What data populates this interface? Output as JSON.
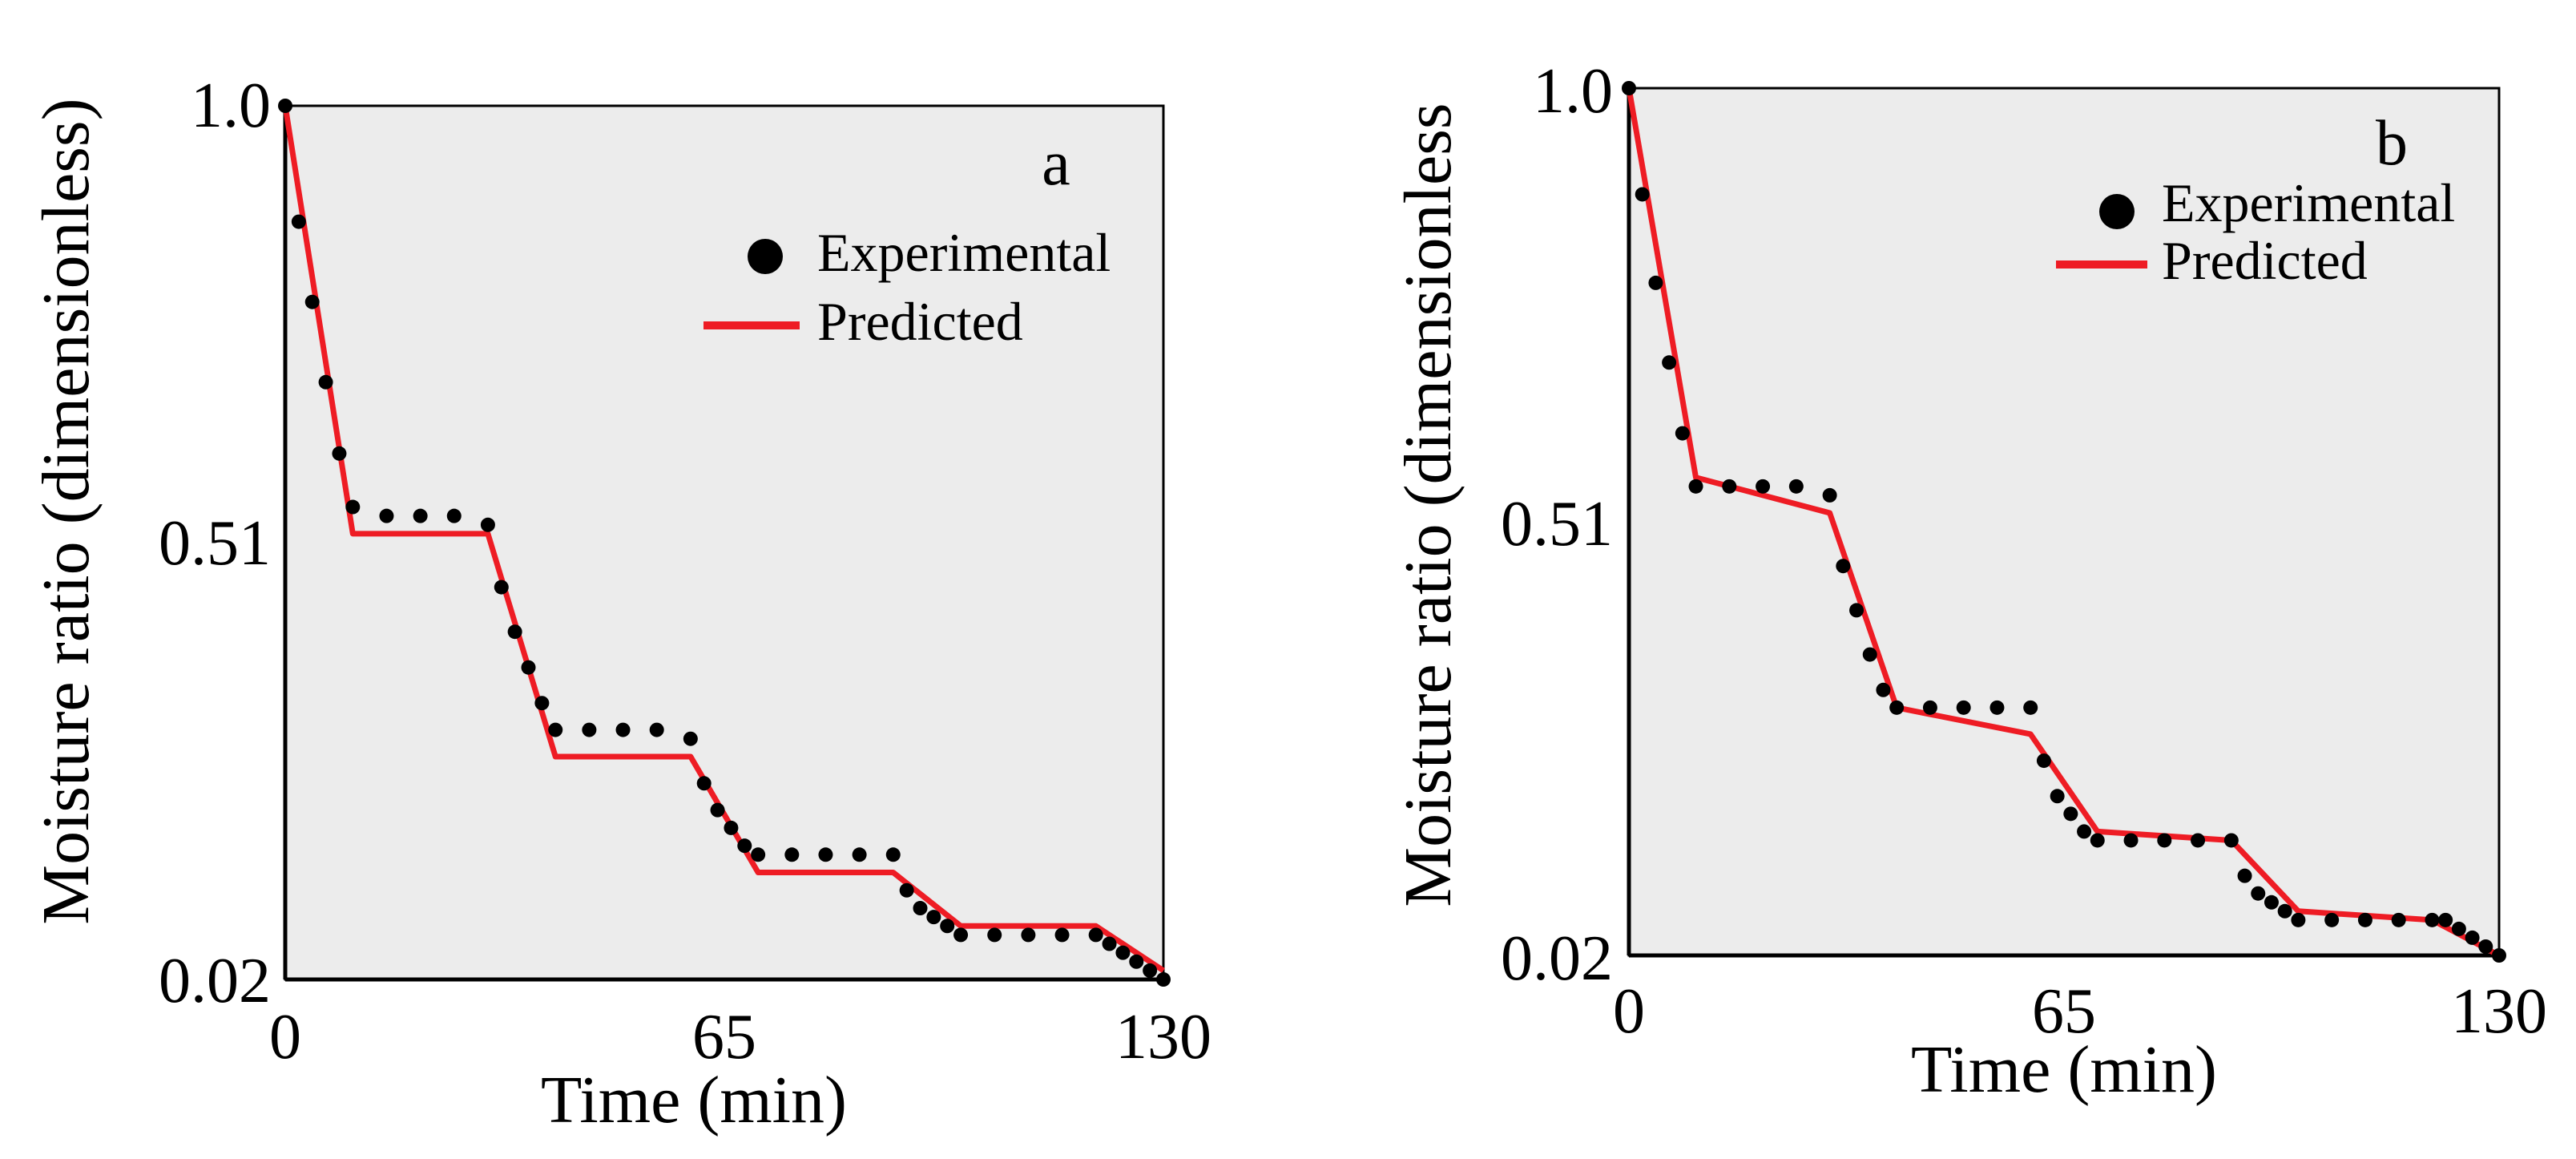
{
  "chart_data": [
    {
      "panel": "a",
      "type": "scatter+line",
      "title": "",
      "xlabel": "Time (min)",
      "ylabel": "Moisture ratio (dimensionless)",
      "xlim": [
        0,
        130
      ],
      "ylim": [
        0.02,
        1.0
      ],
      "x_ticks": [
        0,
        65,
        130
      ],
      "y_ticks": [
        0.02,
        0.51,
        1.0
      ],
      "x_tick_labels": [
        "0",
        "65",
        "130"
      ],
      "y_tick_labels": [
        "0.02",
        "0.51",
        "1.0"
      ],
      "legend_position": "top-right",
      "background": "#ececec",
      "series": [
        {
          "name": "Experimental",
          "kind": "scatter",
          "color": "#000000",
          "x": [
            0,
            2,
            4,
            6,
            8,
            10,
            15,
            20,
            25,
            30,
            32,
            34,
            36,
            38,
            40,
            45,
            50,
            55,
            60,
            62,
            64,
            66,
            68,
            70,
            75,
            80,
            85,
            90,
            92,
            94,
            96,
            98,
            100,
            105,
            110,
            115,
            120,
            122,
            124,
            126,
            128,
            130
          ],
          "y": [
            1.0,
            0.87,
            0.78,
            0.69,
            0.61,
            0.55,
            0.54,
            0.54,
            0.54,
            0.53,
            0.46,
            0.41,
            0.37,
            0.33,
            0.3,
            0.3,
            0.3,
            0.3,
            0.29,
            0.24,
            0.21,
            0.19,
            0.17,
            0.16,
            0.16,
            0.16,
            0.16,
            0.16,
            0.12,
            0.1,
            0.09,
            0.08,
            0.07,
            0.07,
            0.07,
            0.07,
            0.07,
            0.06,
            0.05,
            0.04,
            0.03,
            0.02
          ]
        },
        {
          "name": "Predicted",
          "kind": "line",
          "color": "#ee1c24",
          "x": [
            0,
            10,
            30,
            40,
            60,
            70,
            90,
            100,
            120,
            130
          ],
          "y": [
            1.0,
            0.52,
            0.52,
            0.27,
            0.27,
            0.14,
            0.14,
            0.08,
            0.08,
            0.03
          ]
        }
      ]
    },
    {
      "panel": "b",
      "type": "scatter+line",
      "title": "",
      "xlabel": "Time (min)",
      "ylabel": "Moisture ratio (dimensionless",
      "xlim": [
        0,
        130
      ],
      "ylim": [
        0.02,
        1.0
      ],
      "x_ticks": [
        0,
        65,
        130
      ],
      "y_ticks": [
        0.02,
        0.51,
        1.0
      ],
      "x_tick_labels": [
        "0",
        "65",
        "130"
      ],
      "y_tick_labels": [
        "0.02",
        "0.51",
        "1.0"
      ],
      "legend_position": "top-right",
      "background": "#ececec",
      "series": [
        {
          "name": "Experimental",
          "kind": "scatter",
          "color": "#000000",
          "x": [
            0,
            2,
            4,
            6,
            8,
            10,
            15,
            20,
            25,
            30,
            32,
            34,
            36,
            38,
            40,
            45,
            50,
            55,
            60,
            62,
            64,
            66,
            68,
            70,
            75,
            80,
            85,
            90,
            92,
            94,
            96,
            98,
            100,
            105,
            110,
            115,
            120,
            122,
            124,
            126,
            128,
            130
          ],
          "y": [
            1.0,
            0.88,
            0.78,
            0.69,
            0.61,
            0.55,
            0.55,
            0.55,
            0.55,
            0.54,
            0.46,
            0.41,
            0.36,
            0.32,
            0.3,
            0.3,
            0.3,
            0.3,
            0.3,
            0.24,
            0.2,
            0.18,
            0.16,
            0.15,
            0.15,
            0.15,
            0.15,
            0.15,
            0.11,
            0.09,
            0.08,
            0.07,
            0.06,
            0.06,
            0.06,
            0.06,
            0.06,
            0.06,
            0.05,
            0.04,
            0.03,
            0.02
          ]
        },
        {
          "name": "Predicted",
          "kind": "line",
          "color": "#ee1c24",
          "x": [
            0,
            10,
            30,
            40,
            60,
            70,
            90,
            100,
            120,
            130
          ],
          "y": [
            1.0,
            0.56,
            0.52,
            0.3,
            0.27,
            0.16,
            0.15,
            0.07,
            0.06,
            0.02
          ]
        }
      ]
    }
  ]
}
